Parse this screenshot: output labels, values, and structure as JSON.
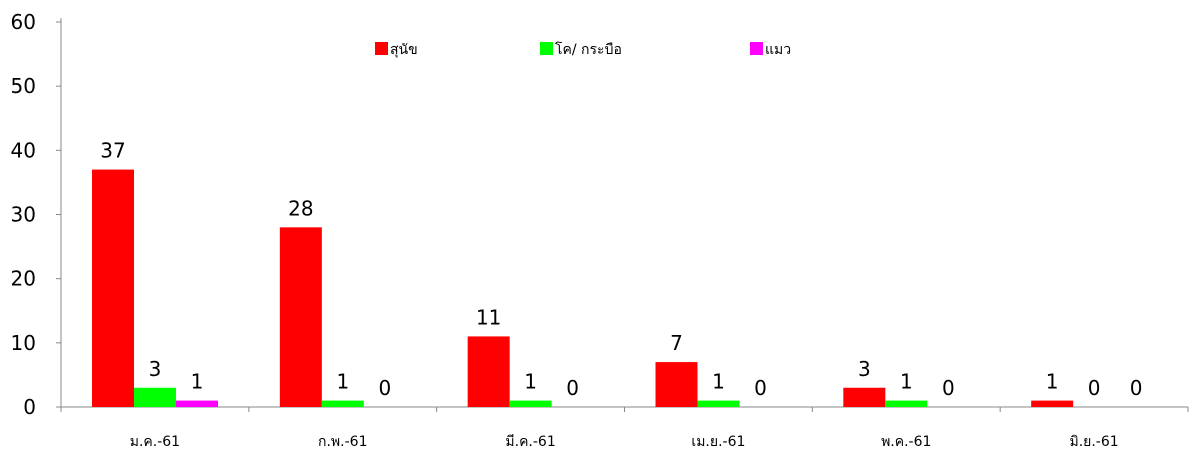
{
  "chart_data": {
    "type": "bar",
    "categories": [
      "ม.ค.-61",
      "ก.พ.-61",
      "มี.ค.-61",
      "เม.ย.-61",
      "พ.ค.-61",
      "มิ.ย.-61"
    ],
    "series": [
      {
        "name": "สุนัข",
        "color": "#ff0000",
        "values": [
          37,
          28,
          11,
          7,
          3,
          1
        ]
      },
      {
        "name": "โค/ กระบือ",
        "color": "#00ff00",
        "values": [
          3,
          1,
          1,
          1,
          1,
          0
        ]
      },
      {
        "name": "แมว",
        "color": "#ff00ff",
        "values": [
          1,
          0,
          0,
          0,
          0,
          0
        ]
      }
    ],
    "ylim": [
      0,
      60
    ],
    "yticks": [
      0,
      10,
      20,
      30,
      40,
      50,
      60
    ],
    "grid": false,
    "legend_position": "top-center",
    "data_labels": true
  }
}
